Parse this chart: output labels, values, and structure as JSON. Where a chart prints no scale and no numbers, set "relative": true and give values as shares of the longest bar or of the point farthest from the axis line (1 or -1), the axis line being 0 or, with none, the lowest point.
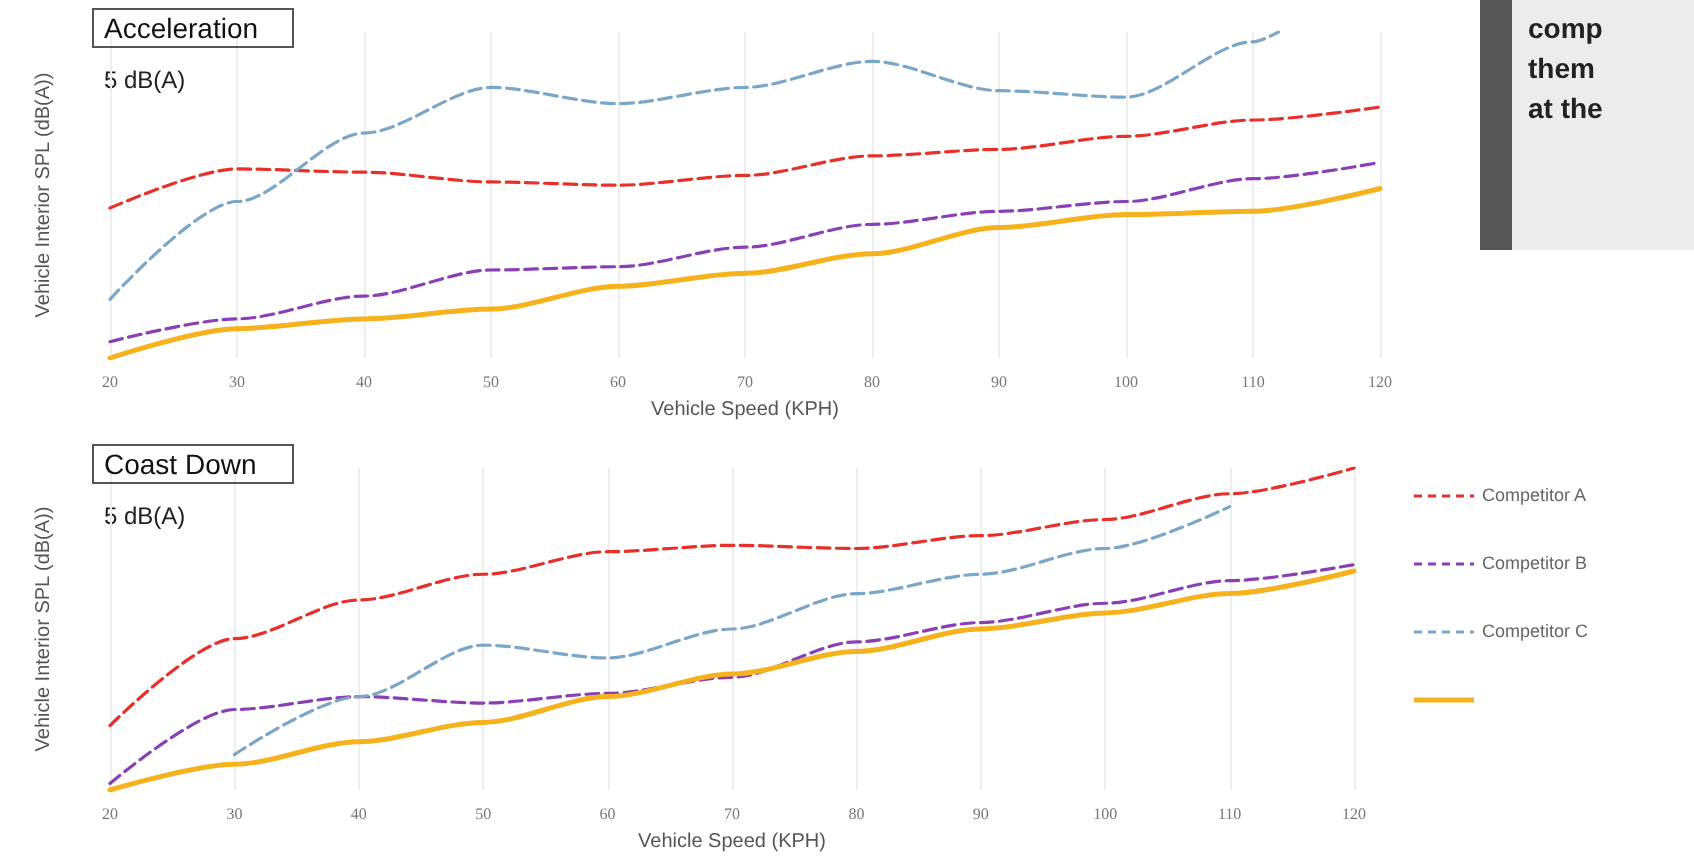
{
  "chart_data": [
    {
      "type": "line",
      "title": "Acceleration",
      "annotations": [
        "5 dB(A)"
      ],
      "xlabel": "Vehicle Speed (KPH)",
      "ylabel": "Vehicle Interior SPL (dB(A))",
      "relative": true,
      "xlim": [
        20,
        120
      ],
      "xticks": [
        20,
        30,
        40,
        50,
        60,
        70,
        80,
        90,
        100,
        110,
        120
      ],
      "grid": "x",
      "legend": false,
      "marker": "none",
      "series": [
        {
          "color": "#e8302a",
          "line_style": "dashed",
          "x": [
            20,
            30,
            40,
            50,
            60,
            70,
            80,
            90,
            100,
            110,
            120
          ],
          "values": [
            0.46,
            0.58,
            0.57,
            0.54,
            0.53,
            0.56,
            0.62,
            0.64,
            0.68,
            0.73,
            0.77
          ]
        },
        {
          "color": "#8a3fb5",
          "line_style": "dashed",
          "x": [
            20,
            30,
            40,
            50,
            60,
            70,
            80,
            90,
            100,
            110,
            120
          ],
          "values": [
            0.05,
            0.12,
            0.19,
            0.27,
            0.28,
            0.34,
            0.41,
            0.45,
            0.48,
            0.55,
            0.6
          ]
        },
        {
          "color": "#7aa7c7",
          "line_style": "dashed",
          "x": [
            20,
            30,
            40,
            50,
            60,
            70,
            80,
            90,
            100,
            110,
            112
          ],
          "values": [
            0.18,
            0.48,
            0.69,
            0.83,
            0.78,
            0.83,
            0.91,
            0.82,
            0.8,
            0.97,
            1.0
          ]
        },
        {
          "color": "#f5b21c",
          "line_style": "solid",
          "x": [
            20,
            30,
            40,
            50,
            60,
            70,
            80,
            90,
            100,
            110,
            120
          ],
          "values": [
            0,
            0.09,
            0.12,
            0.15,
            0.22,
            0.26,
            0.32,
            0.4,
            0.44,
            0.45,
            0.52
          ]
        }
      ]
    },
    {
      "type": "line",
      "title": "Coast Down",
      "annotations": [
        "5 dB(A)"
      ],
      "xlabel": "Vehicle Speed (KPH)",
      "ylabel": "Vehicle Interior SPL (dB(A))",
      "relative": true,
      "xlim": [
        20,
        120
      ],
      "xticks": [
        20,
        30,
        40,
        50,
        60,
        70,
        80,
        90,
        100,
        110,
        120
      ],
      "grid": "x",
      "legend": "right",
      "marker": "none",
      "series": [
        {
          "name": "Competitor A",
          "color": "#e8302a",
          "line_style": "dashed",
          "x": [
            20,
            30,
            40,
            50,
            60,
            70,
            80,
            90,
            100,
            110,
            120
          ],
          "values": [
            0.2,
            0.47,
            0.59,
            0.67,
            0.74,
            0.76,
            0.75,
            0.79,
            0.84,
            0.92,
            1.0
          ]
        },
        {
          "name": "Competitor B",
          "color": "#8a3fb5",
          "line_style": "dashed",
          "x": [
            20,
            30,
            40,
            50,
            60,
            70,
            80,
            90,
            100,
            110,
            120
          ],
          "values": [
            0.02,
            0.25,
            0.29,
            0.27,
            0.3,
            0.35,
            0.46,
            0.52,
            0.58,
            0.65,
            0.7
          ]
        },
        {
          "name": "Competitor C",
          "color": "#7aa7c7",
          "line_style": "dashed",
          "x": [
            30,
            40,
            50,
            60,
            70,
            80,
            90,
            100,
            110
          ],
          "values": [
            0.11,
            0.29,
            0.45,
            0.41,
            0.5,
            0.61,
            0.67,
            0.75,
            0.88
          ]
        },
        {
          "color": "#f5b21c",
          "line_style": "solid",
          "x": [
            20,
            30,
            40,
            50,
            60,
            70,
            80,
            90,
            100,
            110,
            120
          ],
          "values": [
            0,
            0.08,
            0.15,
            0.21,
            0.29,
            0.36,
            0.43,
            0.5,
            0.55,
            0.61,
            0.68
          ]
        }
      ]
    },
    {
      "type": "other",
      "annotations": [
        "comp",
        "them",
        "at the"
      ]
    }
  ]
}
